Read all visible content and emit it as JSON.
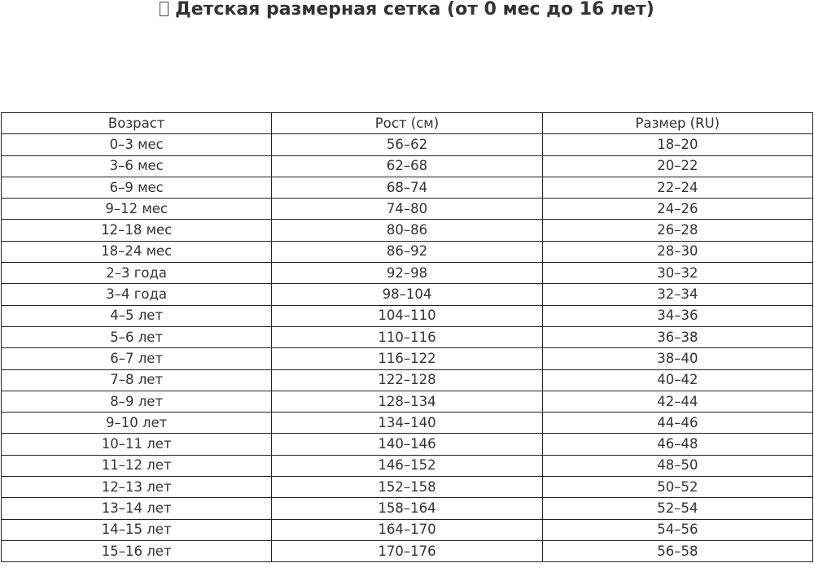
{
  "title": {
    "icon": "missing-glyph-box",
    "text": "Детская размерная сетка (от 0 мес до 16 лет)"
  },
  "table": {
    "headers": [
      "Возраст",
      "Рост (см)",
      "Размер (RU)"
    ],
    "rows": [
      [
        "0–3 мес",
        "56–62",
        "18–20"
      ],
      [
        "3–6 мес",
        "62–68",
        "20–22"
      ],
      [
        "6–9 мес",
        "68–74",
        "22–24"
      ],
      [
        "9–12 мес",
        "74–80",
        "24–26"
      ],
      [
        "12–18 мес",
        "80–86",
        "26–28"
      ],
      [
        "18–24 мес",
        "86–92",
        "28–30"
      ],
      [
        "2–3 года",
        "92–98",
        "30–32"
      ],
      [
        "3–4 года",
        "98–104",
        "32–34"
      ],
      [
        "4–5 лет",
        "104–110",
        "34–36"
      ],
      [
        "5–6 лет",
        "110–116",
        "36–38"
      ],
      [
        "6–7 лет",
        "116–122",
        "38–40"
      ],
      [
        "7–8 лет",
        "122–128",
        "40–42"
      ],
      [
        "8–9 лет",
        "128–134",
        "42–44"
      ],
      [
        "9–10 лет",
        "134–140",
        "44–46"
      ],
      [
        "10–11 лет",
        "140–146",
        "46–48"
      ],
      [
        "11–12 лет",
        "146–152",
        "48–50"
      ],
      [
        "12–13 лет",
        "152–158",
        "50–52"
      ],
      [
        "13–14 лет",
        "158–164",
        "52–54"
      ],
      [
        "14–15 лет",
        "164–170",
        "54–56"
      ],
      [
        "15–16 лет",
        "170–176",
        "56–58"
      ]
    ]
  }
}
